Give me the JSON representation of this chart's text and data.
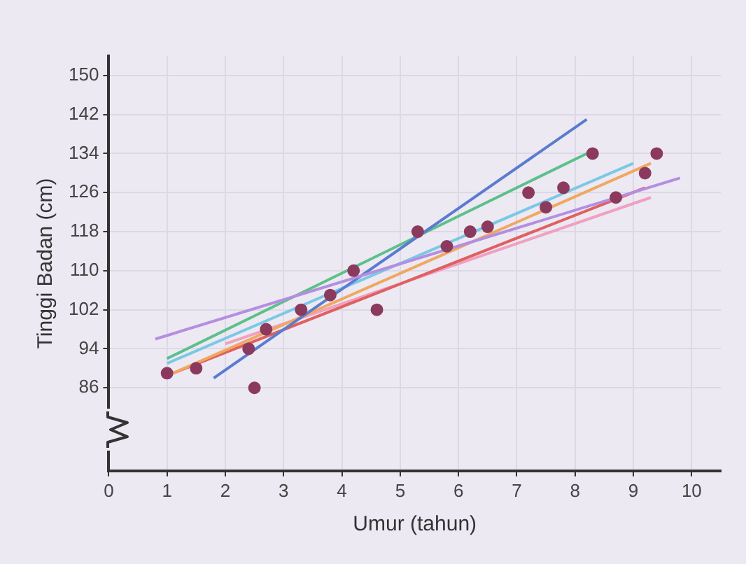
{
  "chart_data": {
    "type": "scatter",
    "xlabel": "Umur (tahun)",
    "ylabel": "Tinggi Badan (cm)",
    "xlim": [
      0,
      10.5
    ],
    "xticks": [
      0,
      1,
      2,
      3,
      4,
      5,
      6,
      7,
      8,
      9,
      10
    ],
    "ylim": [
      69,
      154
    ],
    "yticks": [
      86,
      94,
      102,
      110,
      118,
      126,
      134,
      142,
      150
    ],
    "grid": true,
    "series": [
      {
        "marker": "circle",
        "color": "#8b3a5e",
        "x": [
          1.0,
          1.5,
          2.4,
          2.5,
          2.7,
          3.3,
          3.8,
          4.2,
          4.6,
          5.3,
          5.8,
          6.2,
          6.5,
          7.2,
          7.5,
          7.8,
          8.3,
          8.7,
          9.2,
          9.4
        ],
        "values": [
          89,
          90,
          94,
          86,
          98,
          102,
          105,
          110,
          102,
          118,
          115,
          118,
          119,
          126,
          123,
          127,
          134,
          125,
          130,
          134
        ]
      },
      {
        "type": "line",
        "color": "#b48ee0",
        "x": [
          0.8,
          9.8
        ],
        "values": [
          96,
          129
        ]
      },
      {
        "type": "line",
        "color": "#5b7bd0",
        "x": [
          1.8,
          8.2
        ],
        "values": [
          88,
          141
        ]
      },
      {
        "type": "line",
        "color": "#5cc08a",
        "x": [
          1.0,
          8.2
        ],
        "values": [
          92,
          134
        ]
      },
      {
        "type": "line",
        "color": "#7cc8e4",
        "x": [
          1.0,
          9.0
        ],
        "values": [
          91,
          132
        ]
      },
      {
        "type": "line",
        "color": "#f0a860",
        "x": [
          1.1,
          9.3
        ],
        "values": [
          89,
          132
        ]
      },
      {
        "type": "line",
        "color": "#e06060",
        "x": [
          1.1,
          9.2
        ],
        "values": [
          89,
          127
        ]
      },
      {
        "type": "line",
        "color": "#f0a0c0",
        "x": [
          2.0,
          9.3
        ],
        "values": [
          95,
          125
        ]
      }
    ]
  }
}
